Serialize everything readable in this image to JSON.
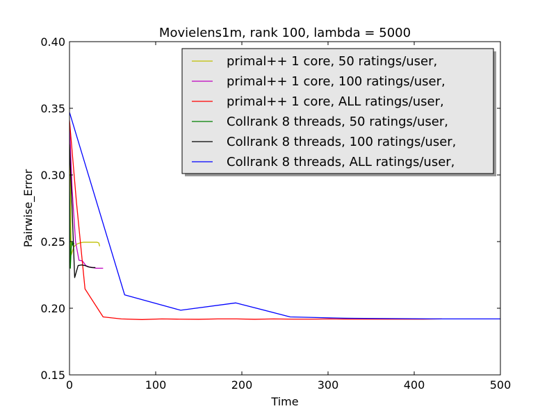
{
  "chart_data": {
    "type": "line",
    "title": "Movielens1m, rank 100, lambda = 5000",
    "xlabel": "Time",
    "ylabel": "Pairwise_Error",
    "xlim": [
      0,
      500
    ],
    "ylim": [
      0.15,
      0.4
    ],
    "xticks": [
      0,
      100,
      200,
      300,
      400,
      500
    ],
    "xtick_labels": [
      "0",
      "100",
      "200",
      "300",
      "400",
      "500"
    ],
    "yticks": [
      0.15,
      0.2,
      0.25,
      0.3,
      0.35,
      0.4
    ],
    "ytick_labels": [
      "0.15",
      "0.20",
      "0.25",
      "0.30",
      "0.35",
      "0.40"
    ],
    "grid": false,
    "legend_position": "top-right",
    "series": [
      {
        "name": "primal++ 1 core, 50 ratings/user,",
        "color": "#bfbf00",
        "x": [
          0,
          2,
          5,
          8,
          12,
          16,
          20,
          24,
          28,
          32,
          34,
          35
        ],
        "y": [
          0.338,
          0.24,
          0.246,
          0.248,
          0.249,
          0.2495,
          0.2495,
          0.2495,
          0.2495,
          0.2495,
          0.249,
          0.2465
        ]
      },
      {
        "name": "primal++ 1 core, 100 ratings/user,",
        "color": "#bf00bf",
        "x": [
          0,
          3,
          7,
          11,
          15,
          19,
          23,
          27,
          31,
          35,
          39
        ],
        "y": [
          0.338,
          0.29,
          0.25,
          0.236,
          0.2355,
          0.232,
          0.231,
          0.2305,
          0.23,
          0.23,
          0.23
        ]
      },
      {
        "name": "primal++ 1 core, ALL ratings/user,",
        "color": "#ff0000",
        "x": [
          0,
          8,
          18,
          39,
          60,
          84,
          107,
          128,
          150,
          172,
          194,
          215,
          237,
          259,
          280,
          302,
          324,
          345,
          367,
          389,
          410,
          432
        ],
        "y": [
          0.341,
          0.28,
          0.2145,
          0.1935,
          0.192,
          0.1915,
          0.192,
          0.1918,
          0.1917,
          0.192,
          0.192,
          0.1917,
          0.192,
          0.1918,
          0.1918,
          0.192,
          0.1918,
          0.1918,
          0.1918,
          0.1918,
          0.1918,
          0.192
        ]
      },
      {
        "name": "Collrank 8 threads, 50 ratings/user,",
        "color": "#008000",
        "x": [
          0,
          1,
          2,
          3,
          4,
          5
        ],
        "y": [
          0.3,
          0.23,
          0.245,
          0.25,
          0.247,
          0.249
        ]
      },
      {
        "name": "Collrank 8 threads, 100 ratings/user,",
        "color": "#000000",
        "x": [
          0,
          3,
          6,
          10,
          14,
          18,
          22,
          26,
          30
        ],
        "y": [
          0.323,
          0.275,
          0.223,
          0.232,
          0.2325,
          0.232,
          0.231,
          0.2305,
          0.2305
        ]
      },
      {
        "name": "Collrank 8 threads, ALL ratings/user,",
        "color": "#0000ff",
        "x": [
          0,
          64,
          129,
          193,
          256,
          320,
          384,
          430,
          500
        ],
        "y": [
          0.347,
          0.21,
          0.1985,
          0.204,
          0.1935,
          0.1925,
          0.1922,
          0.192,
          0.192
        ]
      }
    ]
  }
}
